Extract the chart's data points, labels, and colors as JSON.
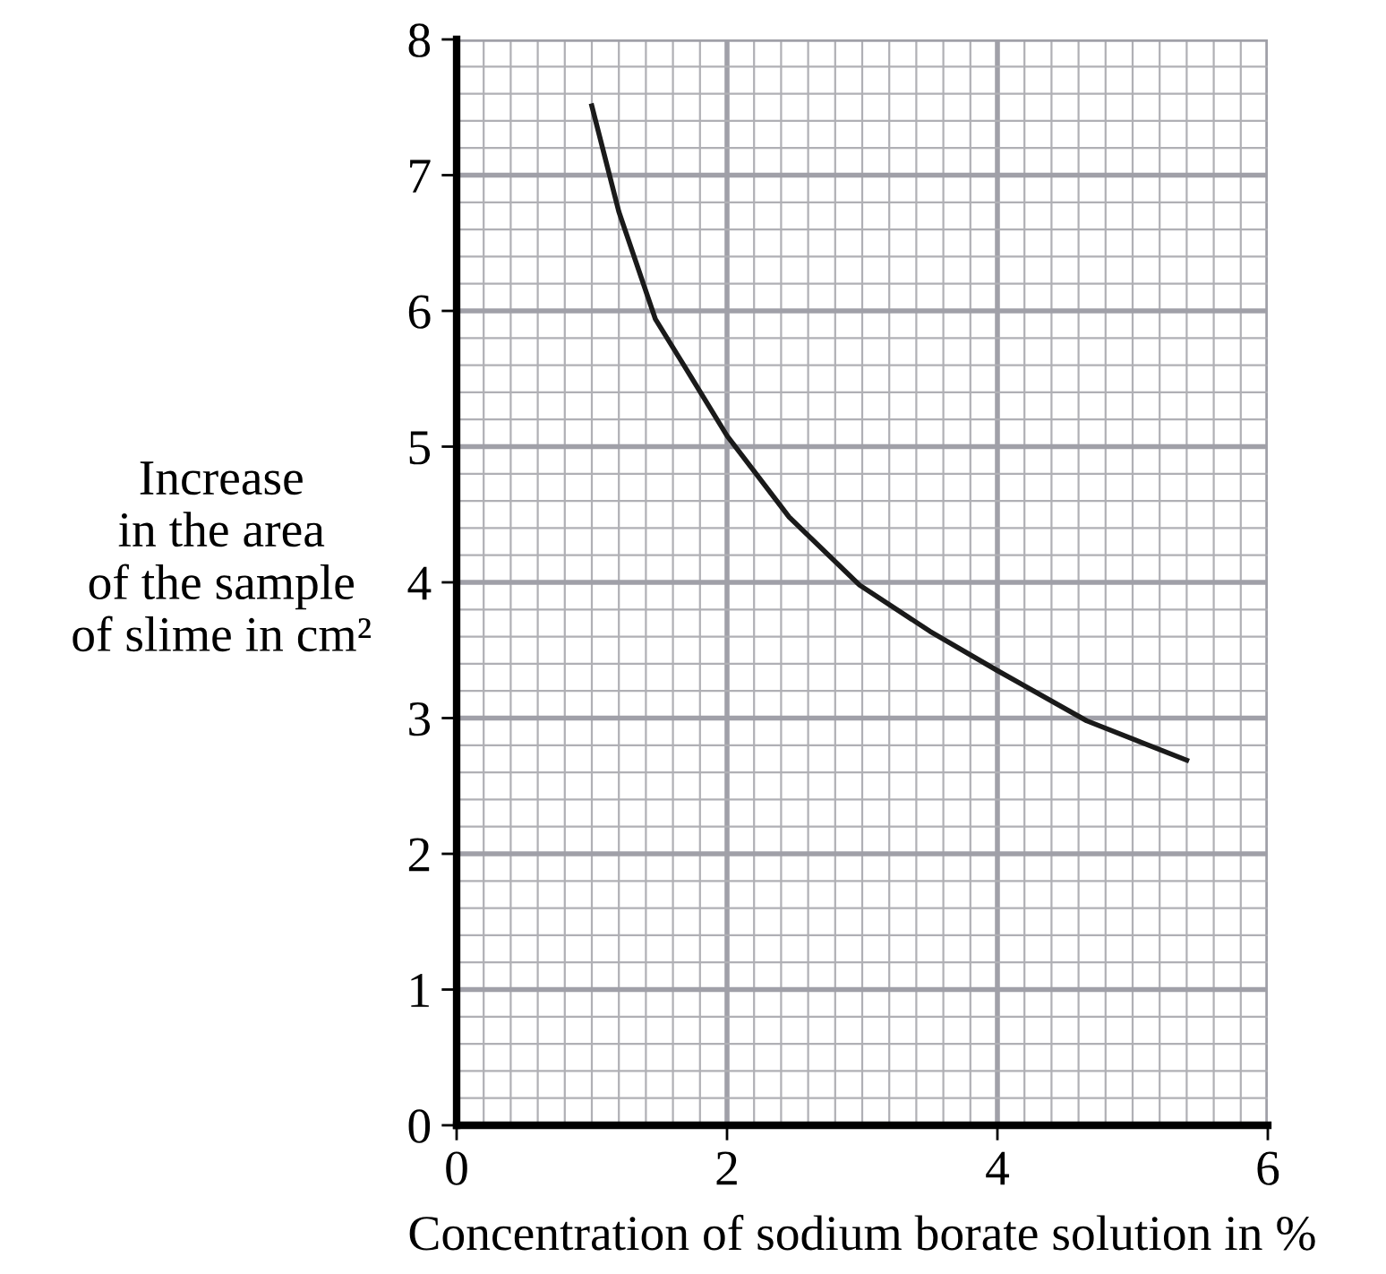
{
  "chart_data": {
    "type": "line",
    "xlabel": "Concentration of sodium borate solution in %",
    "ylabel": "Increase\nin the area\nof the sample\nof slime in cm²",
    "series": [
      {
        "color": "#1a1a1a",
        "x": [
          1.0,
          1.2,
          1.47,
          1.73,
          2.0,
          2.46,
          2.98,
          3.5,
          4.0,
          4.66,
          5.4
        ],
        "values": [
          7.51,
          6.73,
          5.94,
          5.52,
          5.08,
          4.48,
          3.98,
          3.64,
          3.35,
          2.98,
          2.69
        ]
      }
    ],
    "xlim": [
      0,
      6
    ],
    "ylim": [
      0,
      8
    ],
    "xticks": [
      0,
      2,
      4,
      6
    ],
    "yticks": [
      0,
      1,
      2,
      3,
      4,
      5,
      6,
      7,
      8
    ],
    "grid": true,
    "line_style": "solid",
    "marker": "none"
  }
}
